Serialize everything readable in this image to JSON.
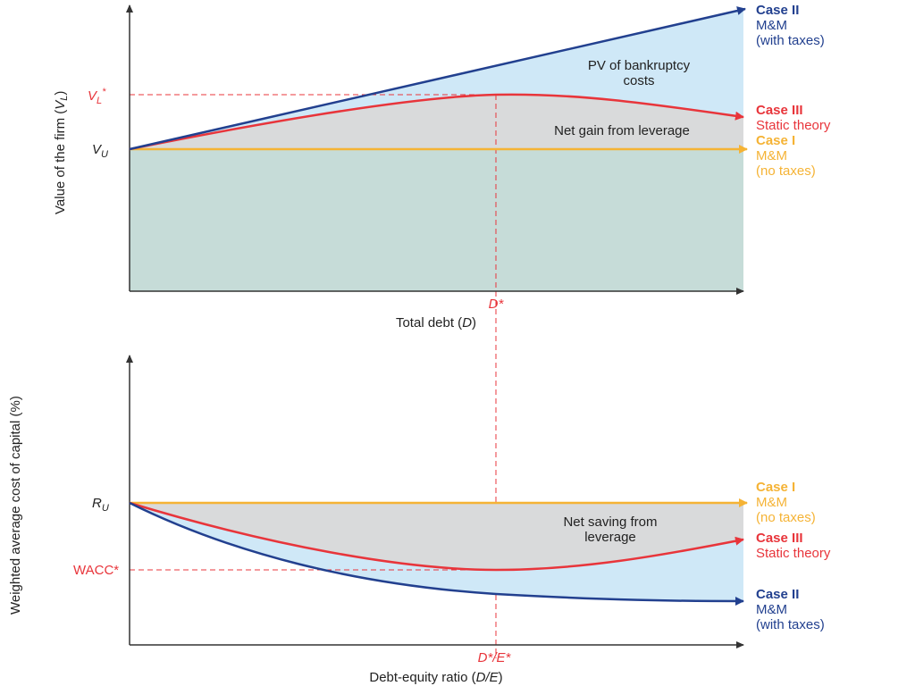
{
  "colors": {
    "case1": "#f5b335",
    "case2": "#22408f",
    "case3": "#e8353b",
    "blue_fill": "#cfe8f7",
    "grey_fill": "#d9dadb",
    "teal_fill": "#c6dcd8",
    "axis": "#333333",
    "guide": "#e8353b",
    "text": "#222222"
  },
  "chart_data": [
    {
      "type": "line",
      "xlabel_text": "Total debt (",
      "xlabel_var": "D",
      "xlabel_close": ")",
      "ylabel_text": "Value of the firm (",
      "ylabel_var": "V",
      "ylabel_sub": "L",
      "ylabel_close": ")",
      "x_marker": "D*",
      "y_ticks": {
        "VU_main": "V",
        "VU_sub": "U",
        "VL_main": "V",
        "VL_sub": "L",
        "VL_star": "*"
      },
      "legend": [
        {
          "key": "case2",
          "title": "Case II",
          "line2": "M&M",
          "line3": "(with taxes)"
        },
        {
          "key": "case3",
          "title": "Case III",
          "line2": "Static theory"
        },
        {
          "key": "case1",
          "title": "Case I",
          "line2": "M&M",
          "line3": "(no taxes)"
        }
      ],
      "annotations": {
        "bankruptcy_line1": "PV of bankruptcy",
        "bankruptcy_line2": "costs",
        "net_gain": "Net gain from leverage"
      }
    },
    {
      "type": "line",
      "xlabel_text": "Debt-equity ratio (",
      "xlabel_var": "D/E",
      "xlabel_close": ")",
      "ylabel": "Weighted average cost of capital (%)",
      "x_marker": "D*/E*",
      "y_ticks": {
        "RU_main": "R",
        "RU_sub": "U",
        "wacc": "WACC*"
      },
      "legend": [
        {
          "key": "case1",
          "title": "Case I",
          "line2": "M&M",
          "line3": "(no taxes)"
        },
        {
          "key": "case3",
          "title": "Case III",
          "line2": "Static theory"
        },
        {
          "key": "case2",
          "title": "Case II",
          "line2": "M&M",
          "line3": "(with taxes)"
        }
      ],
      "annotations": {
        "net_saving_line1": "Net saving from",
        "net_saving_line2": "leverage"
      }
    }
  ]
}
